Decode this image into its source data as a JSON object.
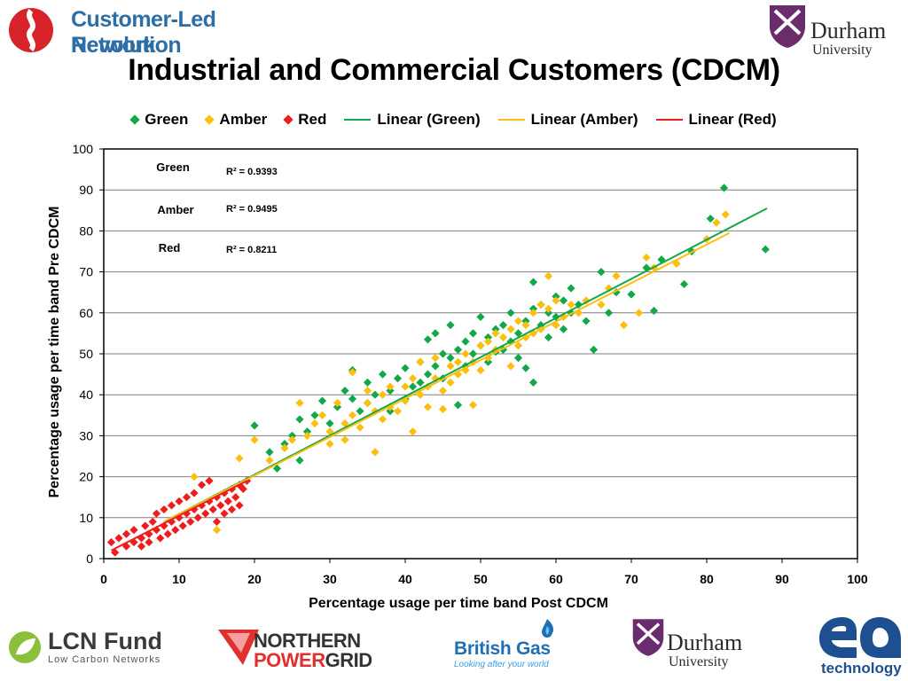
{
  "header": {
    "org_line1": "Customer-Led Network",
    "org_line2": "Revolution",
    "durham_name": "Durham",
    "durham_sub": "University"
  },
  "title": "Industrial and Commercial Customers (CDCM)",
  "colors": {
    "green": "#12a84a",
    "amber": "#fbbf0f",
    "red": "#ee1c1c",
    "axis": "#000000",
    "grid": "#7f7f7f"
  },
  "legend": [
    {
      "label": "Green",
      "kind": "marker",
      "color": "#12a84a"
    },
    {
      "label": "Amber",
      "kind": "marker",
      "color": "#fbbf0f"
    },
    {
      "label": "Red",
      "kind": "marker",
      "color": "#ee1c1c"
    },
    {
      "label": "Linear (Green)",
      "kind": "line",
      "color": "#12a84a"
    },
    {
      "label": "Linear (Amber)",
      "kind": "line",
      "color": "#fbbf0f"
    },
    {
      "label": "Linear (Red)",
      "kind": "line",
      "color": "#ee1c1c"
    }
  ],
  "chart_data": {
    "type": "scatter",
    "title": "Industrial and Commercial Customers (CDCM)",
    "xlabel": "Percentage usage per time band Post CDCM",
    "ylabel": "Percentage usage per time band Pre CDCM",
    "xlim": [
      0,
      100
    ],
    "ylim": [
      0,
      100
    ],
    "xticks": [
      0,
      10,
      20,
      30,
      40,
      50,
      60,
      70,
      80,
      90,
      100
    ],
    "yticks": [
      0,
      10,
      20,
      30,
      40,
      50,
      60,
      70,
      80,
      90,
      100
    ],
    "grid": "horizontal",
    "legend_position": "top",
    "series": [
      {
        "name": "Green",
        "color": "#12a84a",
        "points": [
          [
            20,
            32.5
          ],
          [
            22,
            26
          ],
          [
            23,
            22
          ],
          [
            24,
            28
          ],
          [
            25,
            30
          ],
          [
            26,
            34
          ],
          [
            26,
            24
          ],
          [
            27,
            31
          ],
          [
            28,
            35
          ],
          [
            29,
            38.5
          ],
          [
            30,
            33
          ],
          [
            31,
            37
          ],
          [
            32,
            41
          ],
          [
            33,
            46
          ],
          [
            33,
            39
          ],
          [
            34,
            36
          ],
          [
            35,
            43
          ],
          [
            35,
            38
          ],
          [
            36,
            40
          ],
          [
            37,
            45
          ],
          [
            38,
            41
          ],
          [
            38,
            36
          ],
          [
            39,
            44
          ],
          [
            40,
            46.5
          ],
          [
            40,
            39
          ],
          [
            41,
            42
          ],
          [
            42,
            48
          ],
          [
            42,
            43
          ],
          [
            43,
            53.5
          ],
          [
            43,
            45
          ],
          [
            44,
            47
          ],
          [
            44,
            55
          ],
          [
            45,
            50
          ],
          [
            45,
            44
          ],
          [
            46,
            57
          ],
          [
            46,
            49
          ],
          [
            47,
            51
          ],
          [
            47,
            37.5
          ],
          [
            48,
            53
          ],
          [
            48,
            47
          ],
          [
            49,
            55
          ],
          [
            49,
            50
          ],
          [
            50,
            59
          ],
          [
            50,
            52
          ],
          [
            51,
            54
          ],
          [
            51,
            48
          ],
          [
            52,
            56
          ],
          [
            52,
            50.5
          ],
          [
            53,
            57
          ],
          [
            53,
            51
          ],
          [
            54,
            60
          ],
          [
            54,
            53
          ],
          [
            55,
            55
          ],
          [
            55,
            49
          ],
          [
            56,
            58
          ],
          [
            56,
            46.5
          ],
          [
            57,
            61
          ],
          [
            57,
            43
          ],
          [
            57,
            67.5
          ],
          [
            58,
            57
          ],
          [
            58,
            62
          ],
          [
            59,
            60
          ],
          [
            59,
            54
          ],
          [
            60,
            64
          ],
          [
            60,
            59
          ],
          [
            61,
            63
          ],
          [
            61,
            56
          ],
          [
            62,
            66
          ],
          [
            62,
            60
          ],
          [
            63,
            62
          ],
          [
            64,
            58
          ],
          [
            65,
            51
          ],
          [
            66,
            70
          ],
          [
            67,
            60
          ],
          [
            68,
            65
          ],
          [
            70,
            64.5
          ],
          [
            72,
            71
          ],
          [
            73,
            60.5
          ],
          [
            74,
            73
          ],
          [
            77,
            67
          ],
          [
            78,
            75
          ],
          [
            80.5,
            83
          ],
          [
            82.3,
            90.5
          ],
          [
            87.8,
            75.5
          ]
        ]
      },
      {
        "name": "Amber",
        "color": "#fbbf0f",
        "points": [
          [
            12,
            20
          ],
          [
            15,
            7
          ],
          [
            18,
            24.5
          ],
          [
            20,
            29
          ],
          [
            22,
            24
          ],
          [
            24,
            27
          ],
          [
            25,
            29
          ],
          [
            26,
            38
          ],
          [
            27,
            30
          ],
          [
            28,
            33
          ],
          [
            29,
            35
          ],
          [
            30,
            31
          ],
          [
            30,
            28
          ],
          [
            31,
            38
          ],
          [
            32,
            33
          ],
          [
            32,
            29
          ],
          [
            33,
            45.5
          ],
          [
            33,
            35
          ],
          [
            34,
            32
          ],
          [
            35,
            38
          ],
          [
            35,
            41
          ],
          [
            36,
            26
          ],
          [
            36,
            36
          ],
          [
            37,
            40
          ],
          [
            37,
            34
          ],
          [
            38,
            42
          ],
          [
            38,
            37
          ],
          [
            39,
            36
          ],
          [
            40,
            42
          ],
          [
            40,
            38.5
          ],
          [
            41,
            44
          ],
          [
            41,
            31
          ],
          [
            42,
            48
          ],
          [
            42,
            40
          ],
          [
            43,
            42
          ],
          [
            43,
            37
          ],
          [
            44,
            49
          ],
          [
            44,
            44
          ],
          [
            45,
            41
          ],
          [
            45,
            36.5
          ],
          [
            46,
            47
          ],
          [
            46,
            43
          ],
          [
            47,
            48
          ],
          [
            47,
            45
          ],
          [
            48,
            50
          ],
          [
            48,
            46
          ],
          [
            49,
            37.5
          ],
          [
            49,
            48
          ],
          [
            50,
            52
          ],
          [
            50,
            46
          ],
          [
            51,
            53
          ],
          [
            51,
            49
          ],
          [
            52,
            55
          ],
          [
            52,
            51
          ],
          [
            53,
            54
          ],
          [
            54,
            56
          ],
          [
            54,
            47
          ],
          [
            55,
            58
          ],
          [
            55,
            52
          ],
          [
            56,
            57
          ],
          [
            56,
            54
          ],
          [
            57,
            60
          ],
          [
            57,
            55
          ],
          [
            58,
            62
          ],
          [
            58,
            56
          ],
          [
            59,
            61
          ],
          [
            59,
            69
          ],
          [
            60,
            57
          ],
          [
            60,
            63
          ],
          [
            61,
            59
          ],
          [
            62,
            62
          ],
          [
            63,
            60
          ],
          [
            64,
            63
          ],
          [
            66,
            62
          ],
          [
            67,
            66
          ],
          [
            68,
            69
          ],
          [
            69,
            57
          ],
          [
            71,
            60
          ],
          [
            72,
            73.5
          ],
          [
            73,
            71
          ],
          [
            76,
            72
          ],
          [
            80,
            78
          ],
          [
            81.3,
            82
          ],
          [
            82.5,
            84
          ]
        ]
      },
      {
        "name": "Red",
        "color": "#ee1c1c",
        "points": [
          [
            1,
            4
          ],
          [
            1.5,
            1.5
          ],
          [
            2,
            5
          ],
          [
            3,
            3
          ],
          [
            3,
            6
          ],
          [
            4,
            4
          ],
          [
            4,
            7
          ],
          [
            5,
            5
          ],
          [
            5,
            3
          ],
          [
            5.5,
            8
          ],
          [
            6,
            6
          ],
          [
            6,
            4
          ],
          [
            6.5,
            9
          ],
          [
            7,
            7
          ],
          [
            7,
            11
          ],
          [
            7.5,
            5
          ],
          [
            8,
            8
          ],
          [
            8,
            12
          ],
          [
            8.5,
            6
          ],
          [
            9,
            9
          ],
          [
            9,
            13
          ],
          [
            9.5,
            7
          ],
          [
            10,
            10
          ],
          [
            10,
            14
          ],
          [
            10.5,
            8
          ],
          [
            11,
            11
          ],
          [
            11,
            15
          ],
          [
            11.5,
            9
          ],
          [
            12,
            12
          ],
          [
            12,
            16
          ],
          [
            12.5,
            10
          ],
          [
            13,
            13
          ],
          [
            13,
            18
          ],
          [
            13.5,
            11
          ],
          [
            14,
            14
          ],
          [
            14,
            19
          ],
          [
            14.5,
            12
          ],
          [
            15,
            15
          ],
          [
            15,
            9
          ],
          [
            15.5,
            13
          ],
          [
            16,
            16
          ],
          [
            16,
            11
          ],
          [
            16.5,
            14
          ],
          [
            17,
            17
          ],
          [
            17,
            12
          ],
          [
            17.5,
            15
          ],
          [
            18,
            18
          ],
          [
            18,
            13
          ],
          [
            18.5,
            17
          ],
          [
            19,
            19
          ]
        ]
      }
    ],
    "trendlines": [
      {
        "name": "Linear (Green)",
        "x": [
          8,
          88
        ],
        "y": [
          9,
          85.5
        ],
        "r2_label": "Green",
        "r2": "R² = 0.9393"
      },
      {
        "name": "Linear (Amber)",
        "x": [
          8,
          83
        ],
        "y": [
          9,
          79.5
        ],
        "r2_label": "Amber",
        "r2": "R² = 0.9495"
      },
      {
        "name": "Linear (Red)",
        "x": [
          1,
          19
        ],
        "y": [
          2,
          19
        ],
        "r2_label": "Red",
        "r2": "R² = 0.8211"
      }
    ]
  },
  "footer": {
    "lcn_name": "LCN Fund",
    "lcn_sub": "Low Carbon Networks",
    "npg_line1": "NORTHERN",
    "npg_power": "POWER",
    "npg_grid": "GRID",
    "bg_name": "British Gas",
    "bg_tagline": "Looking after your world",
    "durham_name": "Durham",
    "durham_sub": "University",
    "ea_tagline": "technology"
  }
}
